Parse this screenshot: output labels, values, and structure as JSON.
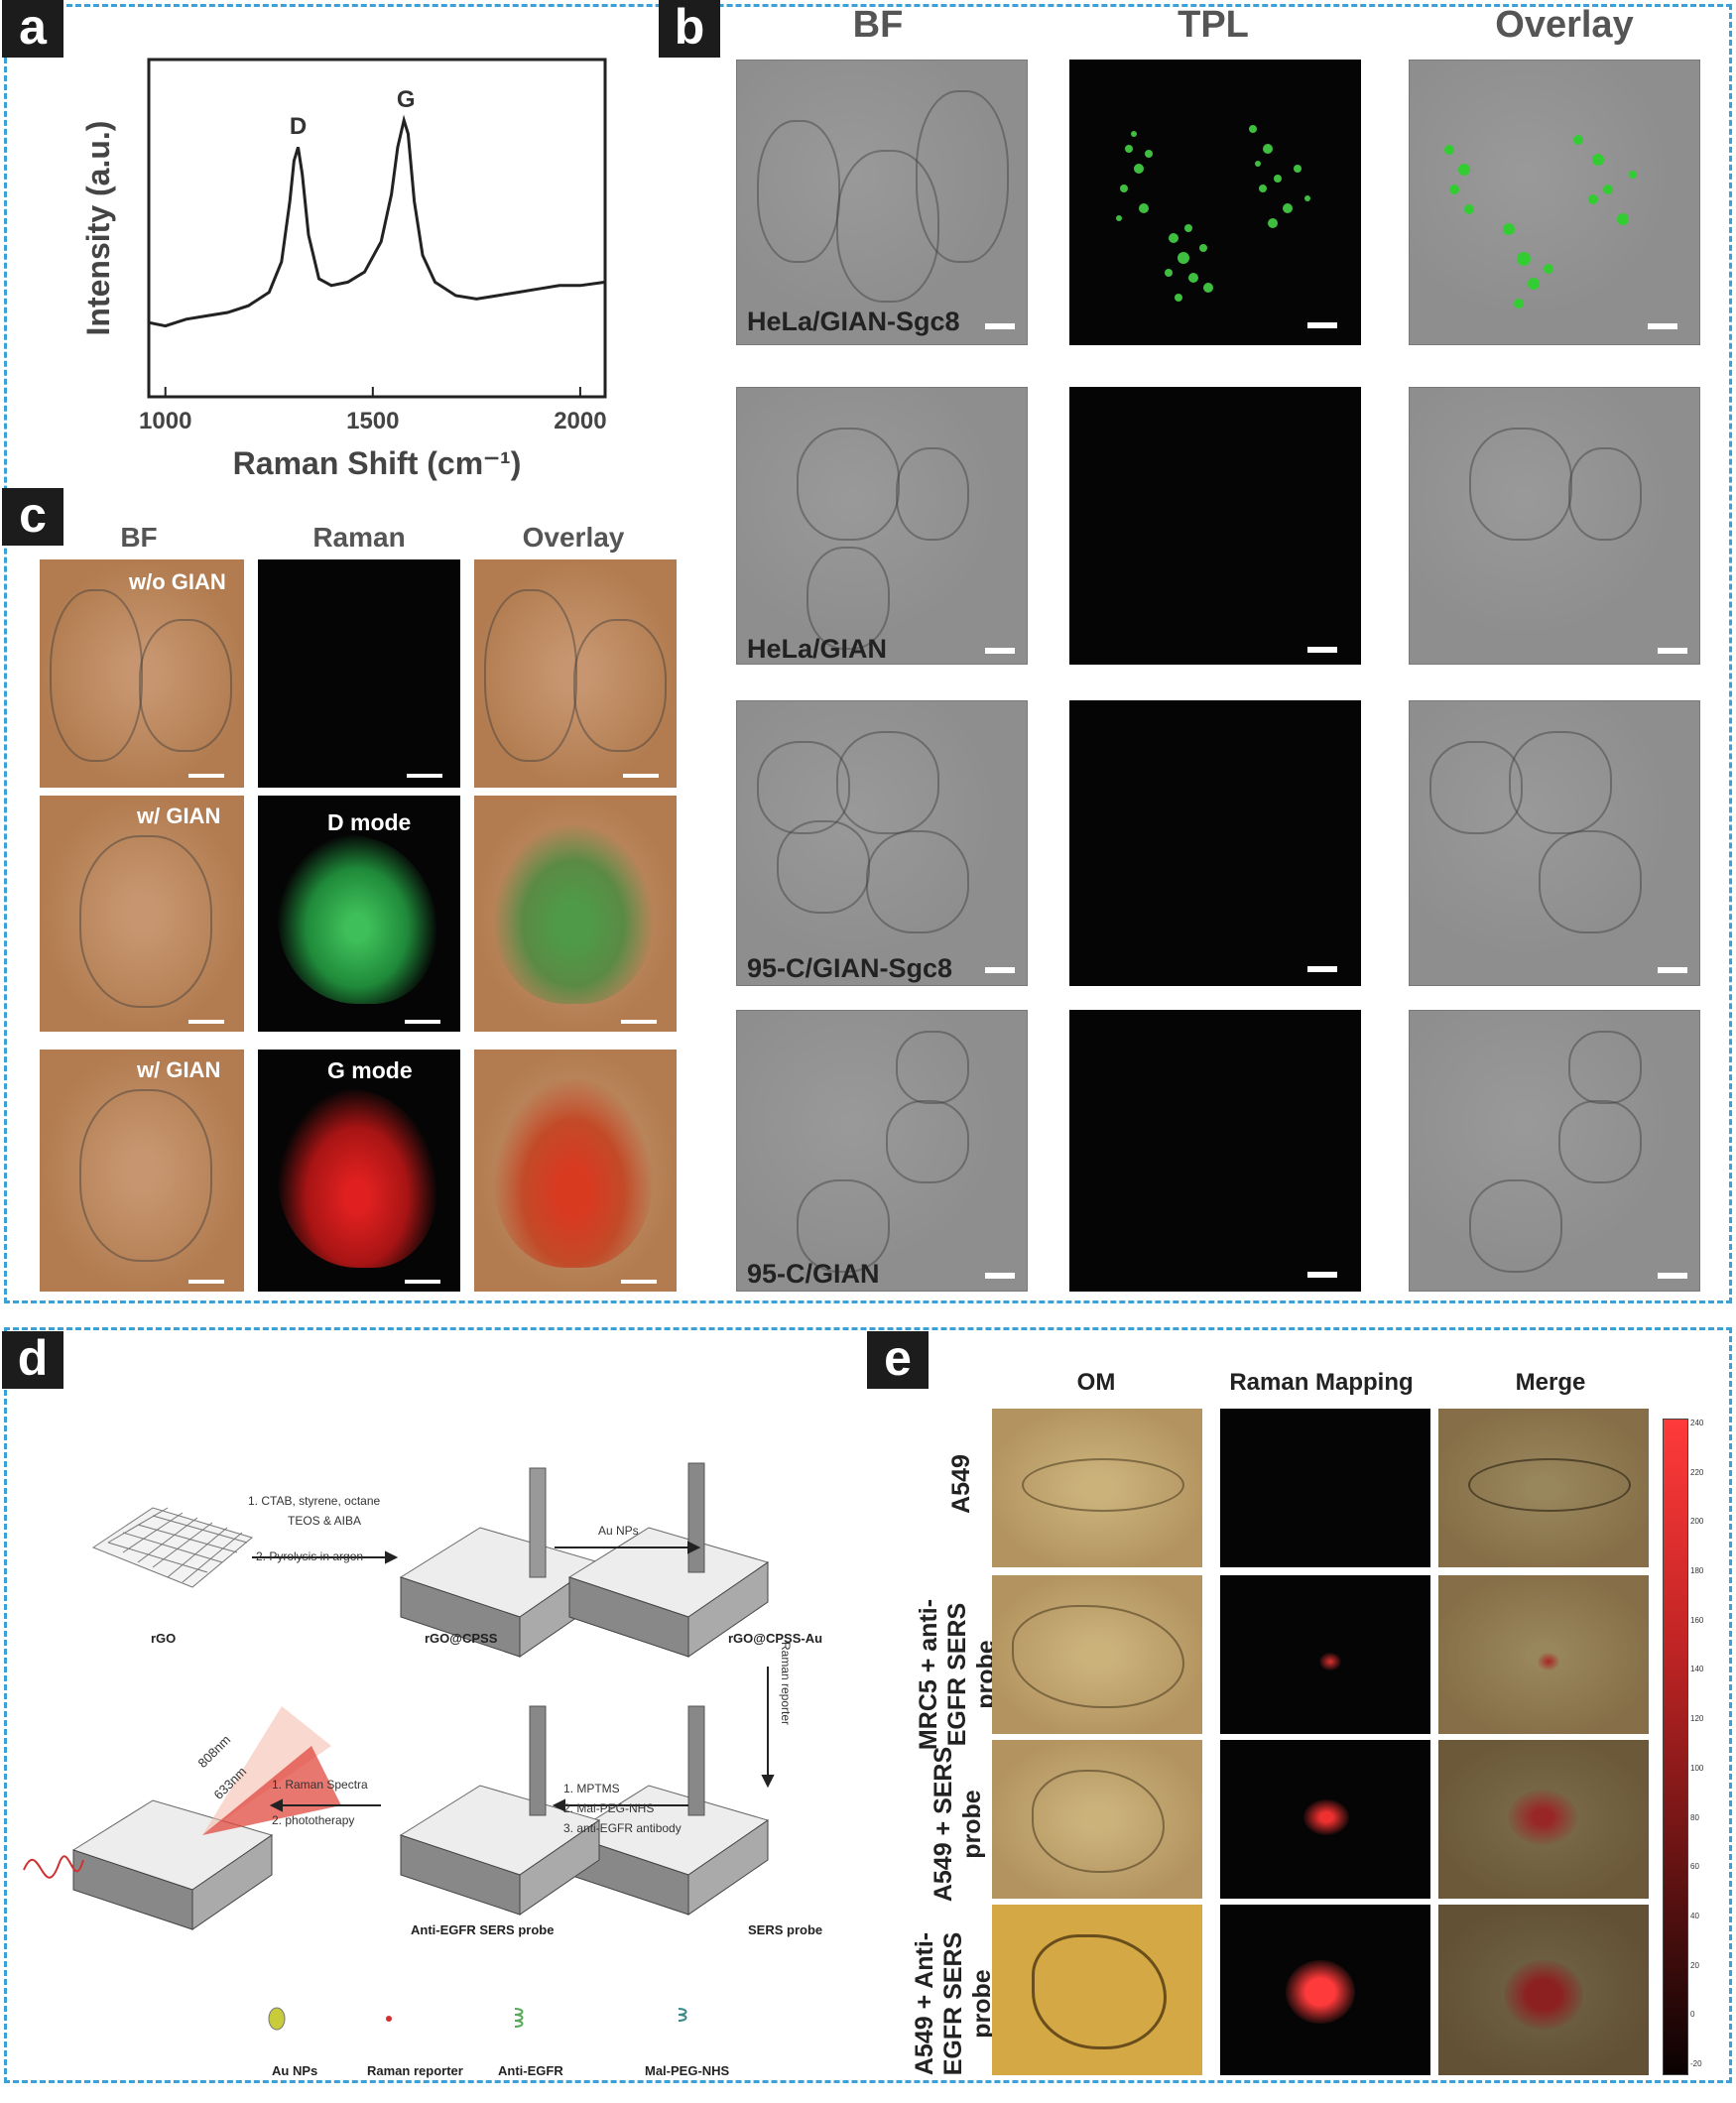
{
  "panels": {
    "a": {
      "label": "a"
    },
    "b": {
      "label": "b"
    },
    "c": {
      "label": "c"
    },
    "d": {
      "label": "d"
    },
    "e": {
      "label": "e"
    }
  },
  "chart_data": {
    "type": "line",
    "xlabel": "Raman Shift (cm⁻¹)",
    "ylabel": "Intensity (a.u.)",
    "xlim": [
      960,
      2060
    ],
    "ylim": [
      0,
      1
    ],
    "xticks": [
      "1000",
      "1500",
      "2000"
    ],
    "annotations": [
      {
        "text": "D",
        "x": 1320
      },
      {
        "text": "G",
        "x": 1580
      }
    ],
    "x": [
      960,
      1000,
      1050,
      1100,
      1150,
      1200,
      1250,
      1280,
      1300,
      1310,
      1320,
      1330,
      1345,
      1370,
      1400,
      1440,
      1480,
      1520,
      1545,
      1560,
      1575,
      1585,
      1600,
      1620,
      1650,
      1700,
      1750,
      1800,
      1850,
      1900,
      1950,
      2000,
      2060
    ],
    "y": [
      0.22,
      0.21,
      0.23,
      0.24,
      0.25,
      0.27,
      0.31,
      0.4,
      0.58,
      0.7,
      0.74,
      0.66,
      0.48,
      0.35,
      0.33,
      0.34,
      0.37,
      0.46,
      0.6,
      0.74,
      0.82,
      0.78,
      0.58,
      0.42,
      0.34,
      0.3,
      0.29,
      0.3,
      0.31,
      0.32,
      0.33,
      0.33,
      0.34
    ]
  },
  "panel_b": {
    "headers": [
      "BF",
      "TPL",
      "Overlay"
    ],
    "rows": [
      "HeLa/GIAN-Sgc8",
      "HeLa/GIAN",
      "95-C/GIAN-Sgc8",
      "95-C/GIAN"
    ]
  },
  "panel_c": {
    "headers": [
      "BF",
      "Raman",
      "Overlay"
    ],
    "row_labels": [
      "w/o GIAN",
      "w/ GIAN",
      "w/ GIAN"
    ],
    "mode_labels": [
      "D mode",
      "G mode"
    ]
  },
  "panel_d": {
    "step1": "1. CTAB, styrene, octane",
    "step1b": "TEOS & AIBA",
    "step2": "2. Pyrolysis in argon",
    "au_nps": "Au NPs",
    "raman_reporter_arrow": "Raman reporter",
    "mptms": "1. MPTMS",
    "malpeg": "2. Mal-PEG-NHS",
    "antibody": "3. anti-EGFR antibody",
    "raman_spectra": "1. Raman Spectra",
    "phototherapy": "2. phototherapy",
    "laser1": "808nm",
    "laser2": "633nm",
    "names": [
      "rGO",
      "rGO@CPSS",
      "rGO@CPSS-Au",
      "SERS probe",
      "Anti-EGFR SERS probe"
    ],
    "legend": [
      "Au NPs",
      "Raman reporter",
      "Anti-EGFR",
      "Mal-PEG-NHS"
    ]
  },
  "panel_e": {
    "headers": [
      "OM",
      "Raman Mapping",
      "Merge"
    ],
    "rows": [
      "A549",
      "MRC5 + anti-EGFR SERS probe",
      "A549 + SERS probe",
      "A549 + Anti-EGFR SERS probe"
    ],
    "colorbar_ticks": [
      "240",
      "220",
      "200",
      "180",
      "160",
      "140",
      "120",
      "100",
      "80",
      "60",
      "40",
      "20",
      "0",
      "-20"
    ]
  }
}
